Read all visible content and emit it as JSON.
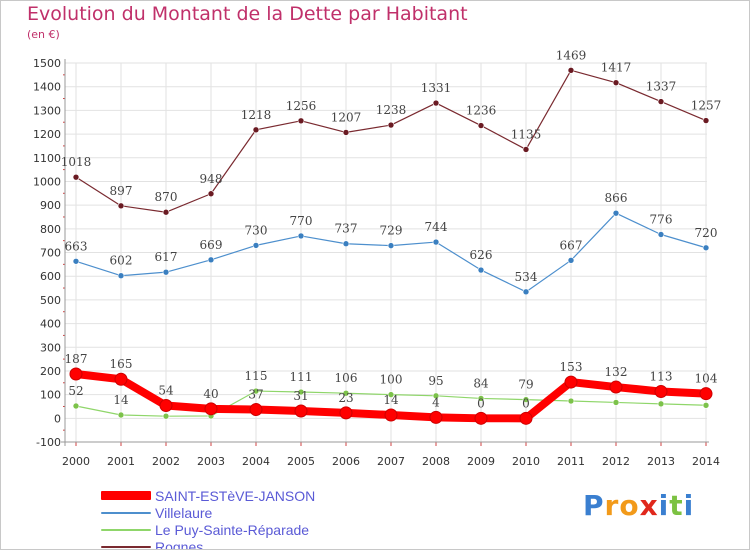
{
  "chart_data": {
    "type": "line",
    "title": "Evolution du Montant de la Dette par Habitant",
    "subtitle": "(en €)",
    "x": [
      "2000",
      "2001",
      "2002",
      "2003",
      "2004",
      "2005",
      "2006",
      "2007",
      "2008",
      "2009",
      "2010",
      "2011",
      "2012",
      "2013",
      "2014"
    ],
    "ylim": [
      -100,
      1500
    ],
    "yticks": [
      "-100",
      "0",
      "100",
      "200",
      "300",
      "400",
      "500",
      "600",
      "700",
      "800",
      "900",
      "1000",
      "1100",
      "1200",
      "1300",
      "1400",
      "1500"
    ],
    "grid": true,
    "legend_position": "bottom-left",
    "series": [
      {
        "name": "SAINT-ESTèVE-JANSON",
        "color": "#ff0000",
        "values": [
          187,
          165,
          54,
          40,
          37,
          31,
          23,
          14,
          4,
          0,
          0,
          153,
          132,
          113,
          104
        ],
        "labels": [
          "187",
          "165",
          "54",
          "40",
          "37",
          "31",
          "23",
          "14",
          "4",
          "0",
          "0",
          "153",
          "132",
          "113",
          "104"
        ]
      },
      {
        "name": "Villelaure",
        "color": "#4d8fcd",
        "values": [
          663,
          602,
          617,
          669,
          730,
          770,
          737,
          729,
          744,
          626,
          534,
          667,
          866,
          776,
          720
        ],
        "labels": [
          "663",
          "602",
          "617",
          "669",
          "730",
          "770",
          "737",
          "729",
          "744",
          "626",
          "534",
          "667",
          "866",
          "776",
          "720"
        ]
      },
      {
        "name": "Le Puy-Sainte-Réparade",
        "color": "#8fd66a",
        "values": [
          52,
          14,
          9,
          10,
          115,
          111,
          106,
          100,
          95,
          84,
          79,
          73,
          67,
          61,
          55
        ],
        "labels": [
          "52",
          "14",
          "",
          "",
          "115",
          "111",
          "106",
          "100",
          "95",
          "84",
          "79",
          "",
          "",
          "",
          ""
        ]
      },
      {
        "name": "Rognes",
        "color": "#7a2a30",
        "values": [
          1018,
          897,
          870,
          948,
          1218,
          1256,
          1207,
          1238,
          1331,
          1236,
          1135,
          1469,
          1417,
          1337,
          1257
        ],
        "labels": [
          "1018",
          "897",
          "870",
          "948",
          "1218",
          "1256",
          "1207",
          "1238",
          "1331",
          "1236",
          "1135",
          "1469",
          "1417",
          "1337",
          "1257"
        ]
      }
    ]
  },
  "logo": {
    "letters": [
      "P",
      "r",
      "o",
      "x",
      "i",
      "t",
      "i"
    ],
    "colors": [
      "#3a7fd0",
      "#f29a1a",
      "#f29a1a",
      "#e0281c",
      "#3a7fd0",
      "#7cc242",
      "#3a7fd0"
    ]
  }
}
